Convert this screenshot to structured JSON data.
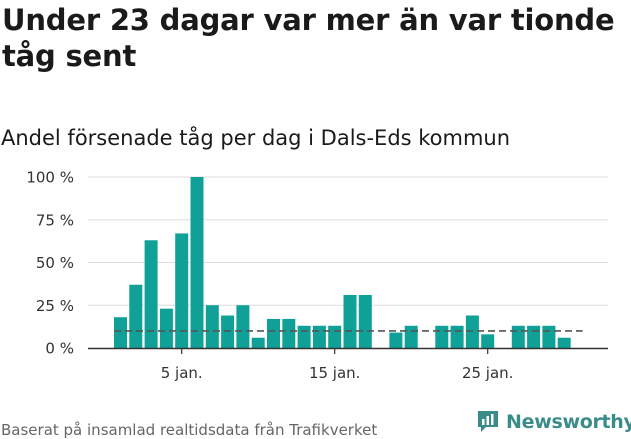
{
  "title": "Under 23 dagar var mer än var tionde tåg sent",
  "subtitle": "Andel försenade tåg per dag i Dals-Eds kommun",
  "source": "Baserat på insamlad realtidsdata från Trafikverket",
  "brand": "Newsworthy",
  "colors": {
    "bar": "#0fa198",
    "reference_line": "#555555",
    "grid": "#dddddd",
    "axis": "#333333"
  },
  "chart_data": {
    "type": "bar",
    "title": "Andel försenade tåg per dag i Dals-Eds kommun",
    "xlabel": "",
    "ylabel": "",
    "ylim": [
      0,
      100
    ],
    "y_ticks": [
      0,
      25,
      50,
      75,
      100
    ],
    "y_tick_labels": [
      "0 %",
      "25 %",
      "50 %",
      "75 %",
      "100 %"
    ],
    "x_ticks": [
      5,
      15,
      25
    ],
    "x_tick_labels": [
      "5 jan.",
      "15 jan.",
      "25 jan."
    ],
    "days": [
      1,
      2,
      3,
      4,
      5,
      6,
      7,
      8,
      9,
      10,
      11,
      12,
      13,
      14,
      15,
      16,
      17,
      18,
      19,
      20,
      21,
      22,
      23,
      24,
      25,
      26,
      27,
      28,
      29,
      30,
      31
    ],
    "values": [
      18,
      37,
      63,
      23,
      67,
      100,
      25,
      19,
      25,
      6,
      17,
      17,
      13,
      13,
      13,
      31,
      31,
      null,
      9,
      13,
      null,
      13,
      13,
      19,
      8,
      null,
      13,
      13,
      13,
      6,
      null
    ],
    "reference_line": 10,
    "grid": true
  }
}
